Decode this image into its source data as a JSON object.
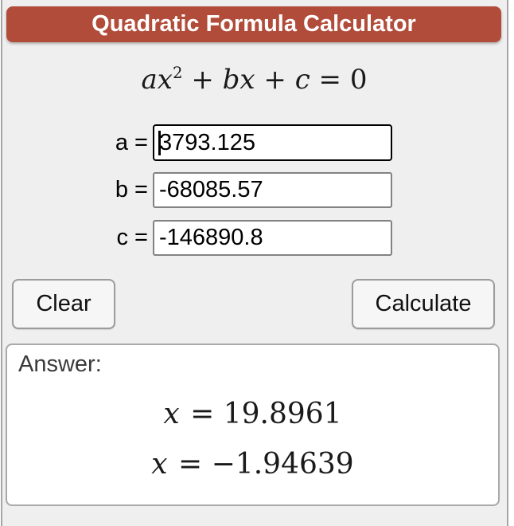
{
  "header": {
    "title": "Quadratic Formula Calculator"
  },
  "formula": {
    "segments": [
      "ax",
      "2",
      " + ",
      "bx",
      " + ",
      "c",
      " = 0"
    ]
  },
  "inputs": [
    {
      "label": "a = ",
      "value": "3793.125",
      "state": "focused"
    },
    {
      "label": "b = ",
      "value": "-68085.57",
      "state": "normal"
    },
    {
      "label": "c = ",
      "value": "-146890.8",
      "state": "normal"
    }
  ],
  "buttons": {
    "clear": "Clear",
    "calculate": "Calculate"
  },
  "answer": {
    "label": "Answer:",
    "solutions": [
      {
        "variable": "x",
        "equals": " = ",
        "value": "19.8961"
      },
      {
        "variable": "x",
        "equals": " = ",
        "value": "−1.94639"
      }
    ]
  },
  "colors": {
    "header_bg": "#b24c3a",
    "header_text": "#ffffff",
    "card_bg": "#efefef",
    "card_border": "#a6a6a6",
    "focused_input_border": "#000000",
    "input_border": "#828282",
    "button_bg": "#f6f6f6",
    "button_border": "#9c9c9c",
    "answer_bg": "#ffffff",
    "answer_border": "#a9a9a9"
  }
}
